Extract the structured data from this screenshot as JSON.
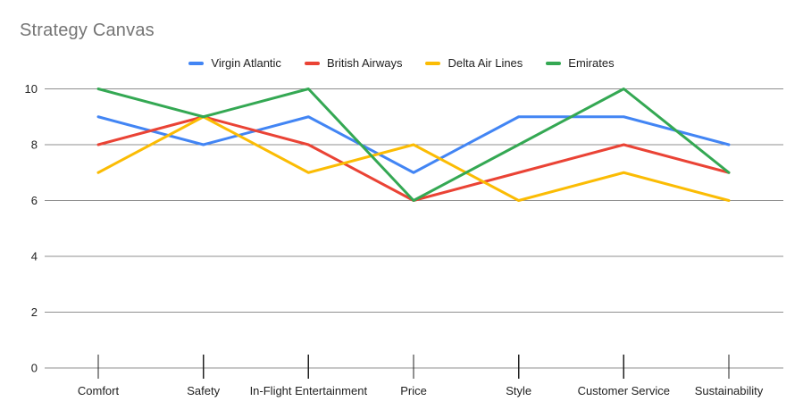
{
  "title": "Strategy Canvas",
  "legend": {
    "position": "top-center"
  },
  "chart_data": {
    "type": "line",
    "title": "Strategy Canvas",
    "categories": [
      "Comfort",
      "Safety",
      "In-Flight Entertainment",
      "Price",
      "Style",
      "Customer Service",
      "Sustainability"
    ],
    "series": [
      {
        "name": "Virgin Atlantic",
        "color": "#4285F4",
        "values": [
          9,
          8,
          9,
          7,
          9,
          9,
          8
        ]
      },
      {
        "name": "British Airways",
        "color": "#EA4335",
        "values": [
          8,
          9,
          8,
          6,
          7,
          8,
          7
        ]
      },
      {
        "name": "Delta Air Lines",
        "color": "#FBBC04",
        "values": [
          7,
          9,
          7,
          8,
          6,
          7,
          6
        ]
      },
      {
        "name": "Emirates",
        "color": "#34A853",
        "values": [
          10,
          9,
          10,
          6,
          8,
          10,
          7
        ]
      }
    ],
    "xlabel": "",
    "ylabel": "",
    "ylim": [
      0,
      10
    ],
    "yticks": [
      0,
      2,
      4,
      6,
      8,
      10
    ],
    "grid": "horizontal",
    "legend_position": "top-center"
  },
  "colors": {
    "background": "#ffffff",
    "title_text": "#757575",
    "axis_text": "#212121",
    "gridline": "#8f8f8f",
    "tick": "#212121"
  }
}
